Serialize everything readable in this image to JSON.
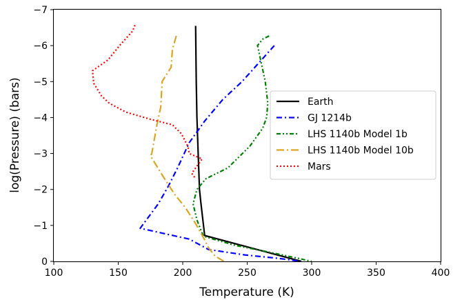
{
  "chart_data": {
    "type": "line",
    "title": "",
    "xlabel": "Temperature (K)",
    "ylabel": "log(Pressure) (bars)",
    "xlim": [
      100,
      400
    ],
    "ylim": [
      0,
      -7
    ],
    "xticks": [
      100,
      150,
      200,
      250,
      300,
      350,
      400
    ],
    "yticks": [
      0,
      -1,
      -2,
      -3,
      -4,
      -5,
      -6,
      -7
    ],
    "grid": false,
    "legend_position": "center-right",
    "series": [
      {
        "name": "Earth",
        "color": "#000000",
        "dash": "solid",
        "points": [
          [
            210,
            -6.55
          ],
          [
            210.5,
            -5
          ],
          [
            211,
            -4
          ],
          [
            212,
            -3
          ],
          [
            213,
            -2
          ],
          [
            214,
            -1.65
          ],
          [
            217,
            -0.72
          ],
          [
            292,
            0
          ]
        ]
      },
      {
        "name": "GJ 1214b",
        "color": "#0000ff",
        "dash": "dash-dot",
        "points": [
          [
            271,
            -6.0
          ],
          [
            261,
            -5.6
          ],
          [
            246,
            -5.0
          ],
          [
            231,
            -4.5
          ],
          [
            217,
            -3.9
          ],
          [
            205,
            -3.3
          ],
          [
            196,
            -2.6
          ],
          [
            189,
            -2.1
          ],
          [
            181,
            -1.6
          ],
          [
            167,
            -0.92
          ],
          [
            205,
            -0.62
          ],
          [
            220,
            -0.33
          ],
          [
            248,
            -0.18
          ],
          [
            275,
            -0.08
          ],
          [
            292,
            0
          ]
        ]
      },
      {
        "name": "LHS 1140b Model 1b",
        "color": "#008000",
        "dash": "dash-dot-dot",
        "points": [
          [
            267,
            -6.27
          ],
          [
            262,
            -6.18
          ],
          [
            258,
            -6.0
          ],
          [
            261,
            -5.5
          ],
          [
            264,
            -5.0
          ],
          [
            266,
            -4.4
          ],
          [
            265,
            -4.0
          ],
          [
            262,
            -3.7
          ],
          [
            252,
            -3.2
          ],
          [
            235,
            -2.6
          ],
          [
            218,
            -2.3
          ],
          [
            211,
            -2.0
          ],
          [
            208,
            -1.6
          ],
          [
            211,
            -1.15
          ],
          [
            216,
            -0.7
          ],
          [
            240,
            -0.45
          ],
          [
            268,
            -0.25
          ],
          [
            290,
            -0.08
          ],
          [
            300,
            0
          ]
        ]
      },
      {
        "name": "LHS 1140b Model 10b",
        "color": "#daa520",
        "dash": "long-dash-dot",
        "points": [
          [
            195,
            -6.27
          ],
          [
            192,
            -5.9
          ],
          [
            191,
            -5.4
          ],
          [
            184,
            -5.0
          ],
          [
            183,
            -4.3
          ],
          [
            180,
            -3.8
          ],
          [
            176,
            -3.0
          ],
          [
            175,
            -2.93
          ],
          [
            185,
            -2.35
          ],
          [
            194,
            -1.85
          ],
          [
            202,
            -1.5
          ],
          [
            210,
            -1.05
          ],
          [
            217,
            -0.6
          ],
          [
            220,
            -0.38
          ],
          [
            225,
            -0.15
          ],
          [
            232,
            0
          ]
        ]
      },
      {
        "name": "Mars",
        "color": "#ff0000",
        "dash": "dotted",
        "points": [
          [
            163,
            -6.57
          ],
          [
            161,
            -6.4
          ],
          [
            151,
            -6.0
          ],
          [
            142,
            -5.6
          ],
          [
            130,
            -5.3
          ],
          [
            131,
            -4.95
          ],
          [
            137,
            -4.6
          ],
          [
            143,
            -4.4
          ],
          [
            156,
            -4.15
          ],
          [
            175,
            -3.95
          ],
          [
            192,
            -3.8
          ],
          [
            199,
            -3.55
          ],
          [
            204,
            -3.2
          ],
          [
            205,
            -3.0
          ],
          [
            215,
            -2.85
          ],
          [
            207,
            -2.45
          ],
          [
            210,
            -2.3
          ]
        ]
      }
    ]
  }
}
